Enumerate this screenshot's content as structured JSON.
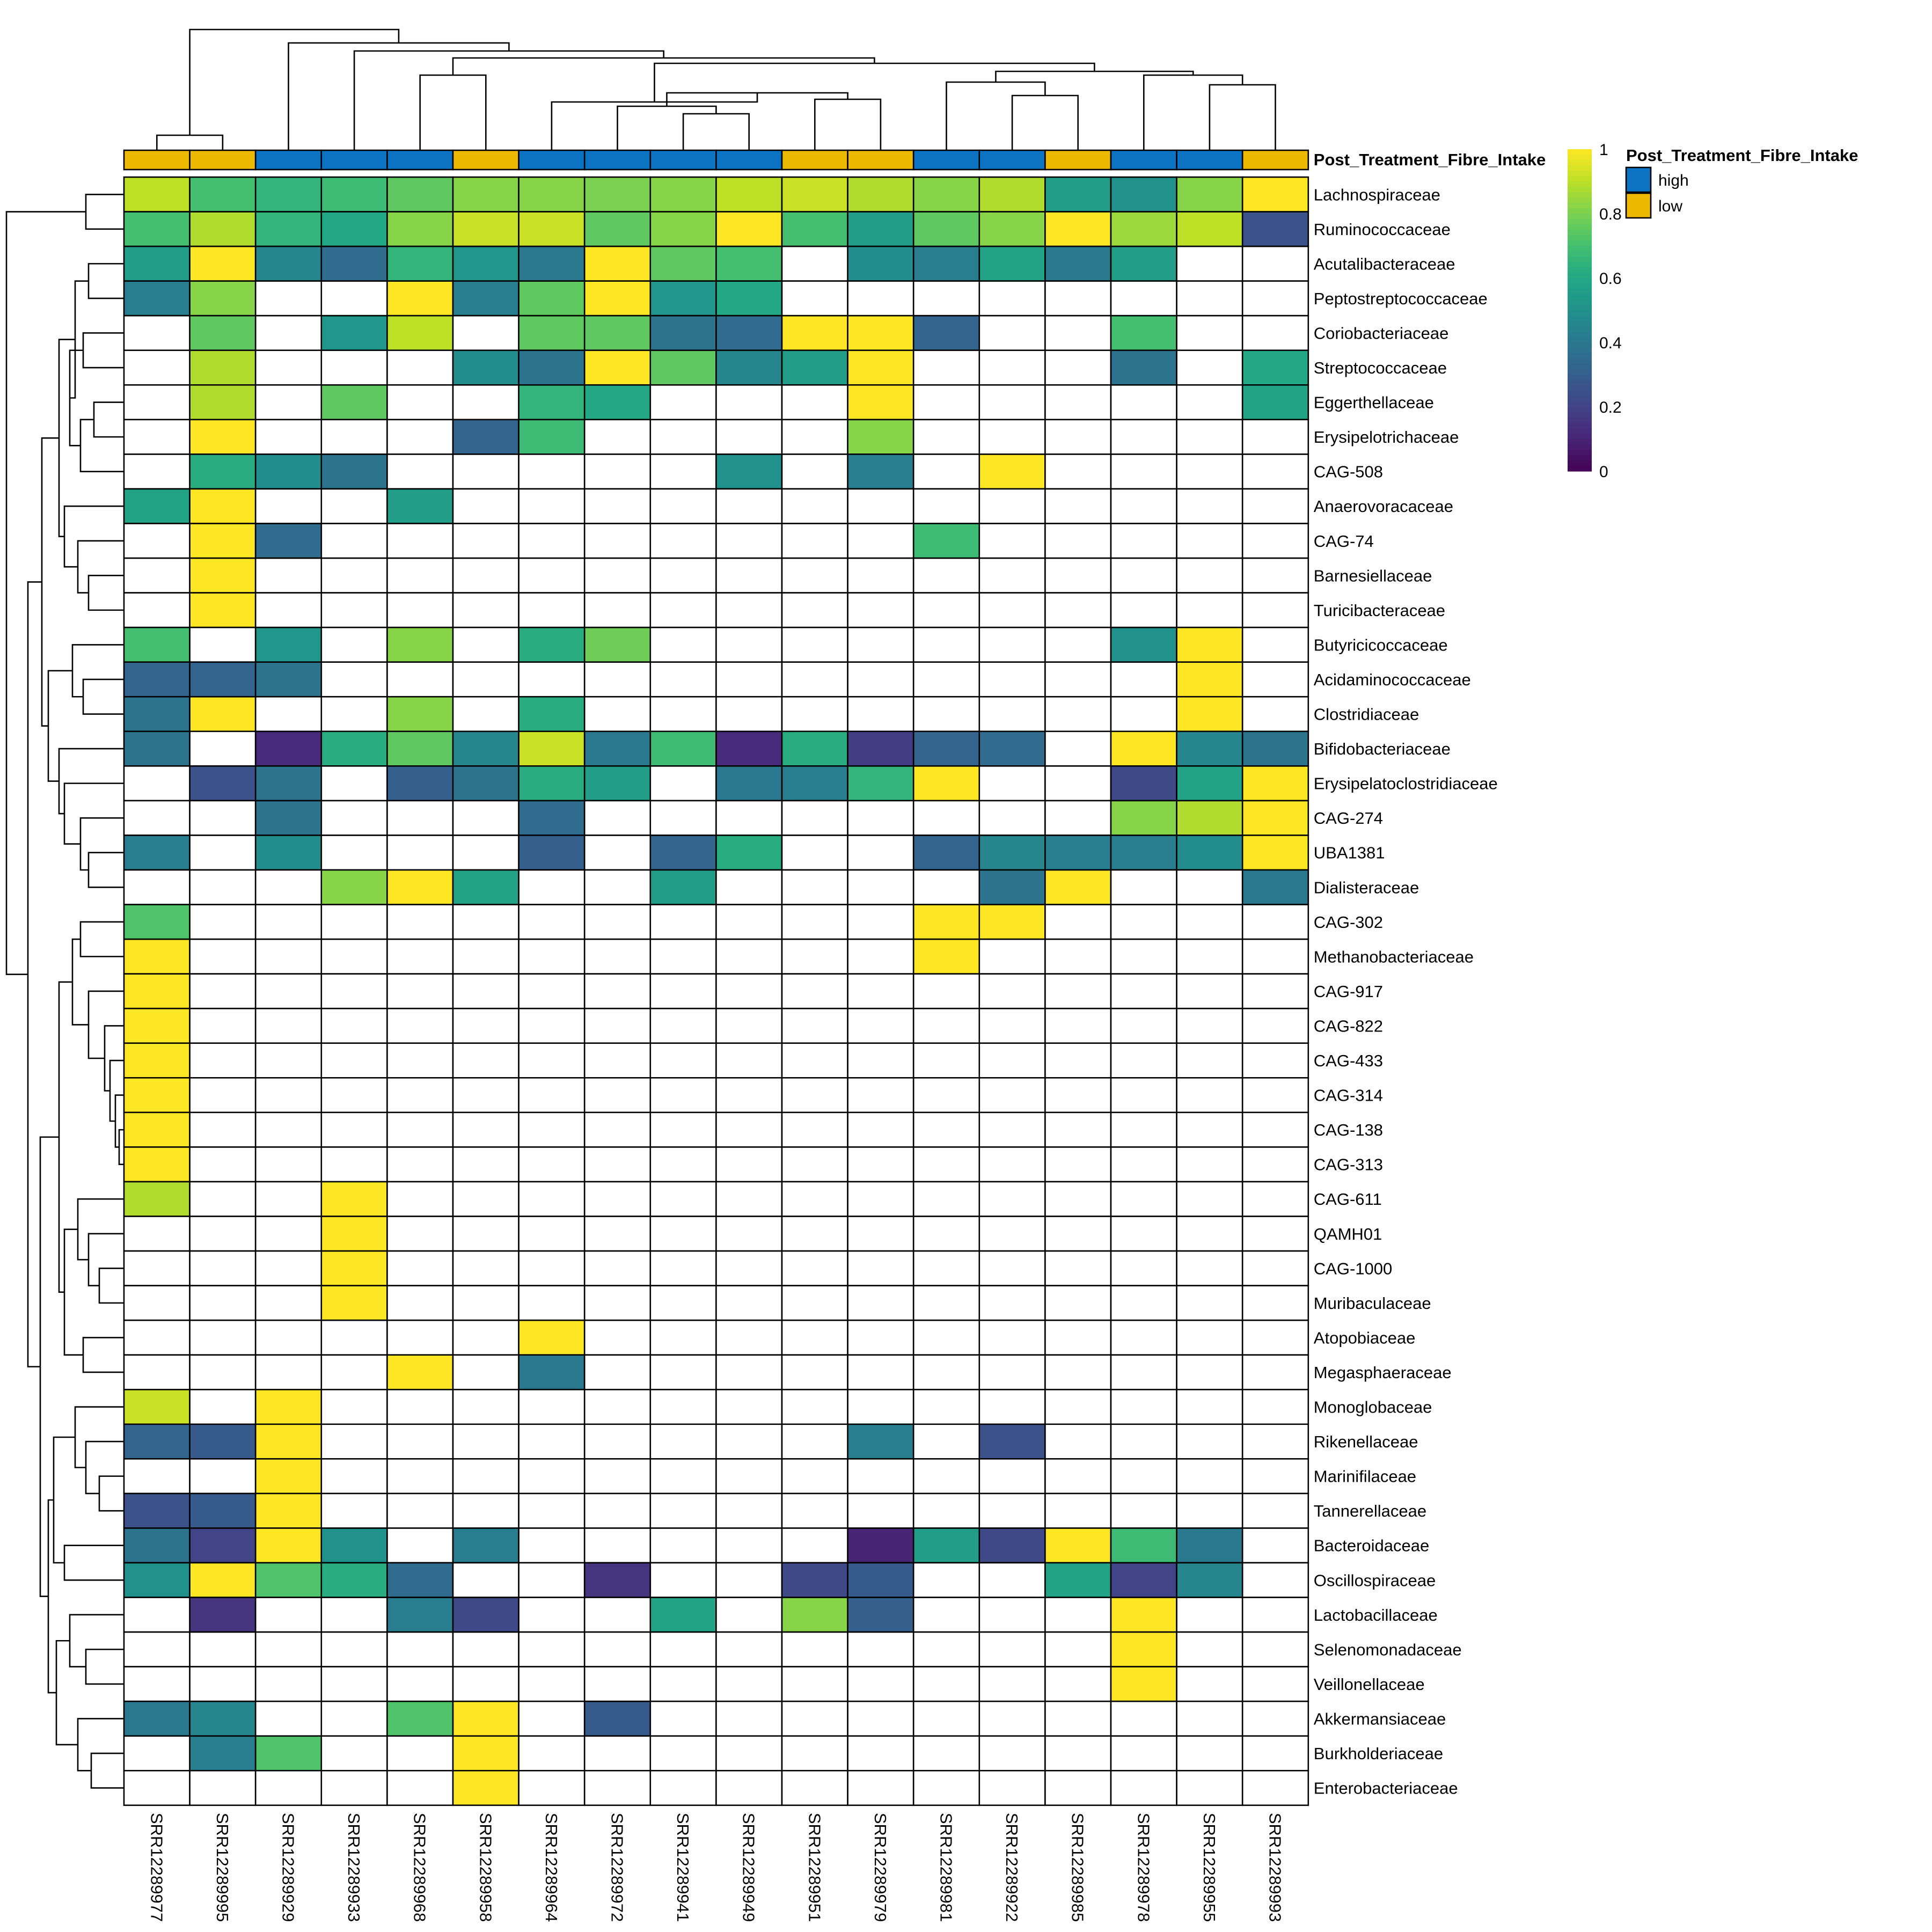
{
  "chart_data": {
    "type": "heatmap",
    "annotation": {
      "name": "Post_Treatment_Fibre_Intake",
      "levels": [
        {
          "label": "high",
          "color": "#0B73C2"
        },
        {
          "label": "low",
          "color": "#EDB800"
        }
      ]
    },
    "columns": [
      {
        "id": "SRR12289977",
        "group": "low"
      },
      {
        "id": "SRR12289995",
        "group": "low"
      },
      {
        "id": "SRR12289929",
        "group": "high"
      },
      {
        "id": "SRR12289933",
        "group": "high"
      },
      {
        "id": "SRR12289968",
        "group": "high"
      },
      {
        "id": "SRR12289958",
        "group": "low"
      },
      {
        "id": "SRR12289964",
        "group": "high"
      },
      {
        "id": "SRR12289972",
        "group": "high"
      },
      {
        "id": "SRR12289941",
        "group": "high"
      },
      {
        "id": "SRR12289949",
        "group": "high"
      },
      {
        "id": "SRR12289951",
        "group": "low"
      },
      {
        "id": "SRR12289979",
        "group": "low"
      },
      {
        "id": "SRR12289981",
        "group": "high"
      },
      {
        "id": "SRR12289922",
        "group": "high"
      },
      {
        "id": "SRR12289985",
        "group": "low"
      },
      {
        "id": "SRR12289978",
        "group": "high"
      },
      {
        "id": "SRR12289955",
        "group": "high"
      },
      {
        "id": "SRR12289993",
        "group": "low"
      }
    ],
    "rows": [
      "Lachnospiraceae",
      "Ruminococcaceae",
      "Acutalibacteraceae",
      "Peptostreptococcaceae",
      "Coriobacteriaceae",
      "Streptococcaceae",
      "Eggerthellaceae",
      "Erysipelotrichaceae",
      "CAG-508",
      "Anaerovoracaceae",
      "CAG-74",
      "Barnesiellaceae",
      "Turicibacteraceae",
      "Butyricicoccaceae",
      "Acidaminococcaceae",
      "Clostridiaceae",
      "Bifidobacteriaceae",
      "Erysipelatoclostridiaceae",
      "CAG-274",
      "UBA1381",
      "Dialisteraceae",
      "CAG-302",
      "Methanobacteriaceae",
      "CAG-917",
      "CAG-822",
      "CAG-433",
      "CAG-314",
      "CAG-138",
      "CAG-313",
      "CAG-611",
      "QAMH01",
      "CAG-1000",
      "Muribaculaceae",
      "Atopobiaceae",
      "Megasphaeraceae",
      "Monoglobaceae",
      "Rikenellaceae",
      "Marinifilaceae",
      "Tannerellaceae",
      "Bacteroidaceae",
      "Oscillospiraceae",
      "Lactobacillaceae",
      "Selenomonadaceae",
      "Veillonellaceae",
      "Akkermansiaceae",
      "Burkholderiaceae",
      "Enterobacteriaceae"
    ],
    "values": [
      [
        0.9,
        0.7,
        0.65,
        0.68,
        0.75,
        0.82,
        0.82,
        0.8,
        0.82,
        0.9,
        0.92,
        0.88,
        0.82,
        0.88,
        0.55,
        0.5,
        0.82,
        1.0
      ],
      [
        0.7,
        0.88,
        0.65,
        0.6,
        0.82,
        0.92,
        0.92,
        0.75,
        0.82,
        1.0,
        0.7,
        0.55,
        0.75,
        0.82,
        1.0,
        0.85,
        0.9,
        0.25
      ],
      [
        0.55,
        1.0,
        0.45,
        0.35,
        0.65,
        0.52,
        0.4,
        1.0,
        0.75,
        0.7,
        null,
        0.48,
        0.42,
        0.58,
        0.4,
        0.55,
        null,
        null
      ],
      [
        0.42,
        0.82,
        null,
        null,
        1.0,
        0.42,
        0.75,
        1.0,
        0.52,
        0.6,
        null,
        null,
        null,
        null,
        null,
        null,
        null,
        null
      ],
      [
        null,
        0.75,
        null,
        0.52,
        0.9,
        null,
        0.75,
        0.75,
        0.38,
        0.35,
        1.0,
        1.0,
        0.32,
        null,
        null,
        0.7,
        null,
        null
      ],
      [
        null,
        0.88,
        null,
        null,
        null,
        0.48,
        0.38,
        1.0,
        0.75,
        0.45,
        0.55,
        1.0,
        null,
        null,
        null,
        0.38,
        null,
        0.6
      ],
      [
        null,
        0.88,
        null,
        0.75,
        null,
        null,
        0.65,
        0.6,
        null,
        null,
        null,
        1.0,
        null,
        null,
        null,
        null,
        null,
        0.58
      ],
      [
        null,
        1.0,
        null,
        null,
        null,
        0.32,
        0.68,
        null,
        null,
        null,
        null,
        0.82,
        null,
        null,
        null,
        null,
        null,
        null
      ],
      [
        null,
        0.62,
        0.48,
        0.38,
        null,
        null,
        null,
        null,
        null,
        0.5,
        null,
        0.42,
        null,
        1.0,
        null,
        null,
        null,
        null
      ],
      [
        0.58,
        1.0,
        null,
        null,
        0.55,
        null,
        null,
        null,
        null,
        null,
        null,
        null,
        null,
        null,
        null,
        null,
        null,
        null
      ],
      [
        null,
        1.0,
        0.35,
        null,
        null,
        null,
        null,
        null,
        null,
        null,
        null,
        null,
        0.68,
        null,
        null,
        null,
        null,
        null
      ],
      [
        null,
        1.0,
        null,
        null,
        null,
        null,
        null,
        null,
        null,
        null,
        null,
        null,
        null,
        null,
        null,
        null,
        null,
        null
      ],
      [
        null,
        1.0,
        null,
        null,
        null,
        null,
        null,
        null,
        null,
        null,
        null,
        null,
        null,
        null,
        null,
        null,
        null,
        null
      ],
      [
        0.7,
        null,
        0.52,
        null,
        0.82,
        null,
        0.62,
        0.78,
        null,
        null,
        null,
        null,
        null,
        null,
        null,
        0.5,
        1.0,
        null
      ],
      [
        0.32,
        0.32,
        0.38,
        null,
        null,
        null,
        null,
        null,
        null,
        null,
        null,
        null,
        null,
        null,
        null,
        null,
        1.0,
        null
      ],
      [
        0.38,
        1.0,
        null,
        null,
        0.82,
        null,
        0.62,
        null,
        null,
        null,
        null,
        null,
        null,
        null,
        null,
        null,
        1.0,
        null
      ],
      [
        0.38,
        null,
        0.12,
        0.62,
        0.75,
        0.45,
        0.92,
        0.4,
        0.68,
        0.12,
        0.62,
        0.18,
        0.32,
        0.35,
        null,
        1.0,
        0.45,
        0.38
      ],
      [
        null,
        0.25,
        0.38,
        null,
        0.3,
        0.38,
        0.62,
        0.55,
        null,
        0.4,
        0.42,
        0.65,
        1.0,
        null,
        null,
        0.22,
        0.58,
        1.0
      ],
      [
        null,
        null,
        0.38,
        null,
        null,
        null,
        0.35,
        null,
        null,
        null,
        null,
        null,
        null,
        null,
        null,
        0.82,
        0.88,
        1.0
      ],
      [
        0.42,
        null,
        0.48,
        null,
        null,
        null,
        0.3,
        null,
        0.32,
        0.62,
        null,
        null,
        0.32,
        0.45,
        0.42,
        0.42,
        0.48,
        1.0
      ],
      [
        null,
        null,
        null,
        0.82,
        1.0,
        0.58,
        null,
        null,
        0.55,
        null,
        null,
        null,
        null,
        0.38,
        1.0,
        null,
        null,
        0.4
      ],
      [
        0.72,
        null,
        null,
        null,
        null,
        null,
        null,
        null,
        null,
        null,
        null,
        null,
        1.0,
        1.0,
        null,
        null,
        null,
        null
      ],
      [
        1.0,
        null,
        null,
        null,
        null,
        null,
        null,
        null,
        null,
        null,
        null,
        null,
        1.0,
        null,
        null,
        null,
        null,
        null
      ],
      [
        1.0,
        null,
        null,
        null,
        null,
        null,
        null,
        null,
        null,
        null,
        null,
        null,
        null,
        null,
        null,
        null,
        null,
        null
      ],
      [
        1.0,
        null,
        null,
        null,
        null,
        null,
        null,
        null,
        null,
        null,
        null,
        null,
        null,
        null,
        null,
        null,
        null,
        null
      ],
      [
        1.0,
        null,
        null,
        null,
        null,
        null,
        null,
        null,
        null,
        null,
        null,
        null,
        null,
        null,
        null,
        null,
        null,
        null
      ],
      [
        1.0,
        null,
        null,
        null,
        null,
        null,
        null,
        null,
        null,
        null,
        null,
        null,
        null,
        null,
        null,
        null,
        null,
        null
      ],
      [
        1.0,
        null,
        null,
        null,
        null,
        null,
        null,
        null,
        null,
        null,
        null,
        null,
        null,
        null,
        null,
        null,
        null,
        null
      ],
      [
        1.0,
        null,
        null,
        null,
        null,
        null,
        null,
        null,
        null,
        null,
        null,
        null,
        null,
        null,
        null,
        null,
        null,
        null
      ],
      [
        0.88,
        null,
        null,
        1.0,
        null,
        null,
        null,
        null,
        null,
        null,
        null,
        null,
        null,
        null,
        null,
        null,
        null,
        null
      ],
      [
        null,
        null,
        null,
        1.0,
        null,
        null,
        null,
        null,
        null,
        null,
        null,
        null,
        null,
        null,
        null,
        null,
        null,
        null
      ],
      [
        null,
        null,
        null,
        1.0,
        null,
        null,
        null,
        null,
        null,
        null,
        null,
        null,
        null,
        null,
        null,
        null,
        null,
        null
      ],
      [
        null,
        null,
        null,
        1.0,
        null,
        null,
        null,
        null,
        null,
        null,
        null,
        null,
        null,
        null,
        null,
        null,
        null,
        null
      ],
      [
        null,
        null,
        null,
        null,
        null,
        null,
        1.0,
        null,
        null,
        null,
        null,
        null,
        null,
        null,
        null,
        null,
        null,
        null
      ],
      [
        null,
        null,
        null,
        null,
        1.0,
        null,
        0.4,
        null,
        null,
        null,
        null,
        null,
        null,
        null,
        null,
        null,
        null,
        null
      ],
      [
        0.92,
        null,
        1.0,
        null,
        null,
        null,
        null,
        null,
        null,
        null,
        null,
        null,
        null,
        null,
        null,
        null,
        null,
        null
      ],
      [
        0.32,
        0.28,
        1.0,
        null,
        null,
        null,
        null,
        null,
        null,
        null,
        null,
        0.42,
        null,
        0.25,
        null,
        null,
        null,
        null
      ],
      [
        null,
        null,
        1.0,
        null,
        null,
        null,
        null,
        null,
        null,
        null,
        null,
        null,
        null,
        null,
        null,
        null,
        null,
        null
      ],
      [
        0.25,
        0.28,
        1.0,
        null,
        null,
        null,
        null,
        null,
        null,
        null,
        null,
        null,
        null,
        null,
        null,
        null,
        null,
        null
      ],
      [
        0.38,
        0.2,
        1.0,
        0.5,
        null,
        0.42,
        null,
        null,
        null,
        null,
        null,
        0.1,
        0.55,
        0.22,
        1.0,
        0.68,
        0.4,
        null
      ],
      [
        0.5,
        1.0,
        0.72,
        0.62,
        0.35,
        null,
        null,
        0.15,
        null,
        null,
        0.22,
        0.28,
        null,
        null,
        0.58,
        0.2,
        0.45,
        null
      ],
      [
        null,
        0.15,
        null,
        null,
        0.42,
        0.22,
        null,
        null,
        0.58,
        null,
        0.82,
        0.3,
        null,
        null,
        null,
        1.0,
        null,
        null
      ],
      [
        null,
        null,
        null,
        null,
        null,
        null,
        null,
        null,
        null,
        null,
        null,
        null,
        null,
        null,
        null,
        1.0,
        null,
        null
      ],
      [
        null,
        null,
        null,
        null,
        null,
        null,
        null,
        null,
        null,
        null,
        null,
        null,
        null,
        null,
        null,
        1.0,
        null,
        null
      ],
      [
        0.4,
        0.45,
        null,
        null,
        0.72,
        1.0,
        null,
        0.28,
        null,
        null,
        null,
        null,
        null,
        null,
        null,
        null,
        null,
        null
      ],
      [
        null,
        0.42,
        0.72,
        null,
        null,
        1.0,
        null,
        null,
        null,
        null,
        null,
        null,
        null,
        null,
        null,
        null,
        null,
        null
      ],
      [
        null,
        null,
        null,
        null,
        null,
        1.0,
        null,
        null,
        null,
        null,
        null,
        null,
        null,
        null,
        null,
        null,
        null,
        null
      ]
    ],
    "color_scale": {
      "name": "viridis",
      "range": [
        0,
        1
      ],
      "ticks": [
        {
          "value": 1,
          "label": "1"
        },
        {
          "value": 0.8,
          "label": "0.8"
        },
        {
          "value": 0.6,
          "label": "0.6"
        },
        {
          "value": 0.4,
          "label": "0.4"
        },
        {
          "value": 0.2,
          "label": "0.2"
        },
        {
          "value": 0,
          "label": "0"
        }
      ],
      "missing_color": "#FFFFFF"
    },
    "row_dendrogram": true,
    "column_dendrogram": true
  }
}
